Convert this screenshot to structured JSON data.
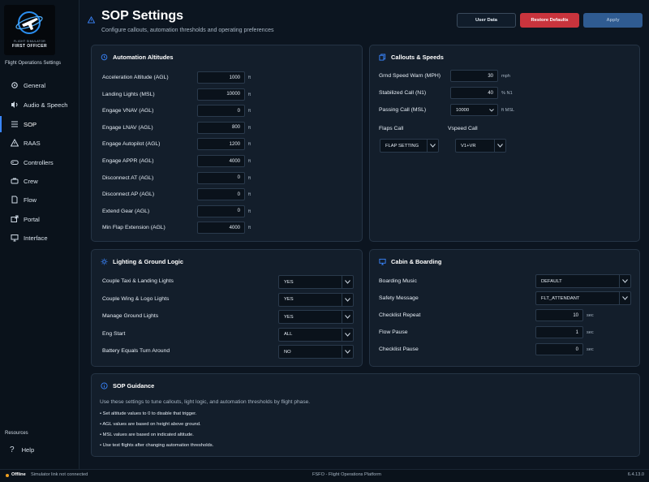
{
  "sidebar": {
    "logo_line1": "FLIGHT SIMULATOR",
    "logo_line2": "FIRST OFFICER",
    "subtitle": "Flight Operations Settings",
    "items": [
      {
        "label": "General",
        "icon": "gear-icon"
      },
      {
        "label": "Audio & Speech",
        "icon": "speech-icon"
      },
      {
        "label": "SOP",
        "icon": "list-icon"
      },
      {
        "label": "RAAS",
        "icon": "warning-icon"
      },
      {
        "label": "Controllers",
        "icon": "gamepad-icon"
      },
      {
        "label": "Crew",
        "icon": "crew-icon"
      },
      {
        "label": "Flow",
        "icon": "document-icon"
      },
      {
        "label": "Portal",
        "icon": "portal-icon"
      },
      {
        "label": "Interface",
        "icon": "monitor-icon"
      }
    ],
    "resources_label": "Resources",
    "help_label": "Help"
  },
  "header": {
    "title": "SOP Settings",
    "subtitle": "Configure callouts, automation thresholds and operating preferences",
    "user_data_label": "User Data",
    "restore_label": "Restore Defaults",
    "apply_label": "Apply"
  },
  "automation": {
    "title": "Automation Altitudes",
    "rows": [
      {
        "label": "Acceleration Altitude (AGL)",
        "value": "1000",
        "unit": "ft"
      },
      {
        "label": "Landing Lights (MSL)",
        "value": "10000",
        "unit": "ft"
      },
      {
        "label": "Engage VNAV (AGL)",
        "value": "0",
        "unit": "ft"
      },
      {
        "label": "Engage LNAV (AGL)",
        "value": "800",
        "unit": "ft"
      },
      {
        "label": "Engage Autopilot (AGL)",
        "value": "1200",
        "unit": "ft"
      },
      {
        "label": "Engage APPR (AGL)",
        "value": "4000",
        "unit": "ft"
      },
      {
        "label": "Disconnect AT (AGL)",
        "value": "0",
        "unit": "ft"
      },
      {
        "label": "Disconnect AP (AGL)",
        "value": "0",
        "unit": "ft"
      },
      {
        "label": "Extend Gear (AGL)",
        "value": "0",
        "unit": "ft"
      },
      {
        "label": "Min Flap Extension (AGL)",
        "value": "4000",
        "unit": "ft"
      }
    ]
  },
  "callouts": {
    "title": "Callouts & Speeds",
    "rows": [
      {
        "label": "Grnd Speed Warn (MPH)",
        "value": "30",
        "unit": "mph"
      },
      {
        "label": "Stabilized Call (N1)",
        "value": "40",
        "unit": "% N1"
      },
      {
        "label": "Passing Call (MSL)",
        "value": "10000",
        "unit": "ft MSL"
      }
    ],
    "flaps_label": "Flaps Call",
    "flaps_value": "FLAP SETTING",
    "vspeed_label": "Vspeed Call",
    "vspeed_value": "V1+VR"
  },
  "lighting": {
    "title": "Lighting & Ground Logic",
    "rows": [
      {
        "label": "Couple Taxi & Landing Lights",
        "value": "YES"
      },
      {
        "label": "Couple Wing & Logo Lights",
        "value": "YES"
      },
      {
        "label": "Manage Ground Lights",
        "value": "YES"
      },
      {
        "label": "Eng Start",
        "value": "ALL"
      },
      {
        "label": "Battery Equals Turn Around",
        "value": "NO"
      }
    ]
  },
  "cabin": {
    "title": "Cabin & Boarding",
    "boarding_music_label": "Boarding Music",
    "boarding_music_value": "DEFAULT",
    "safety_label": "Safety Message",
    "safety_value": "FLT_ATTENDANT",
    "checklist_repeat_label": "Checklist Repeat",
    "checklist_repeat_value": "10",
    "checklist_repeat_unit": "sec",
    "flow_pause_label": "Flow Pause",
    "flow_pause_value": "1",
    "flow_pause_unit": "sec",
    "checklist_pause_label": "Checklist Pause",
    "checklist_pause_value": "0",
    "checklist_pause_unit": "sec"
  },
  "guidance": {
    "title": "SOP Guidance",
    "intro": "Use these settings to tune callouts, light logic, and automation thresholds by flight phase.",
    "items": [
      "• Set altitude values to 0 to disable that trigger.",
      "• AGL values are based on height above ground.",
      "• MSL values are based on indicated altitude.",
      "• Use test flights after changing automation thresholds."
    ]
  },
  "footer": {
    "status": "Offline",
    "sim_text": "Simulator link not connected",
    "center": "FSFO - Flight Operations Platform",
    "version": "6.4.13.0"
  },
  "colors": {
    "accent": "#3a86ff",
    "danger": "#c9343d",
    "apply": "#2f5b91",
    "status_offline": "#f0a020"
  }
}
